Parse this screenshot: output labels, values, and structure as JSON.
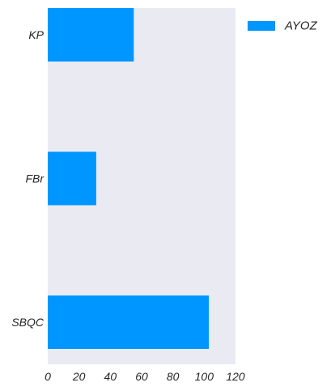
{
  "chart_data": {
    "type": "bar",
    "orientation": "horizontal",
    "categories": [
      "KP",
      "FBr",
      "SBQC"
    ],
    "series": [
      {
        "name": "AYOZ",
        "values": [
          55,
          31,
          103
        ],
        "color": "#0096ff"
      }
    ],
    "xlim": [
      0,
      120
    ],
    "xticks": [
      0,
      20,
      40,
      60,
      80,
      100,
      120
    ],
    "title": "",
    "xlabel": "",
    "ylabel": "",
    "grid": false,
    "plot_background": "#eaeaf2",
    "legend_position": "top-right, outside plot"
  }
}
